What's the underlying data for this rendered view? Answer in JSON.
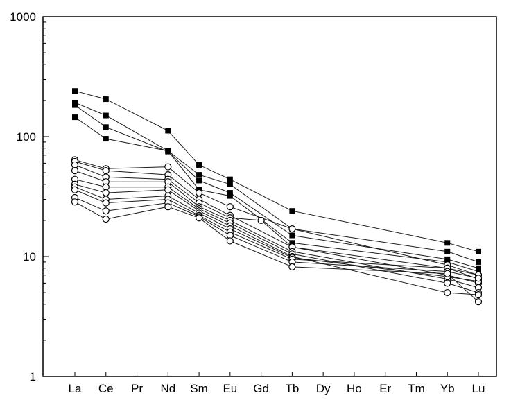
{
  "chart_data": {
    "type": "line",
    "title": "",
    "xlabel": "",
    "ylabel": "",
    "yscale": "log",
    "ylim": [
      1,
      1000
    ],
    "categories": [
      "La",
      "Ce",
      "Pr",
      "Nd",
      "Sm",
      "Eu",
      "Gd",
      "Tb",
      "Dy",
      "Ho",
      "Er",
      "Tm",
      "Yb",
      "Lu"
    ],
    "y_ticks": [
      "1",
      "10",
      "100",
      "1000"
    ],
    "grid": false,
    "legend": "none",
    "series": [
      {
        "marker": "square",
        "points": [
          [
            "La",
            240
          ],
          [
            "Ce",
            205
          ],
          [
            "Nd",
            112
          ],
          [
            "Sm",
            58
          ],
          [
            "Eu",
            44
          ],
          [
            "Tb",
            24
          ],
          [
            "Yb",
            13
          ],
          [
            "Lu",
            11
          ]
        ]
      },
      {
        "marker": "square",
        "points": [
          [
            "La",
            192
          ],
          [
            "Ce",
            150
          ],
          [
            "Nd",
            76
          ],
          [
            "Sm",
            48
          ],
          [
            "Eu",
            40
          ],
          [
            "Tb",
            17
          ],
          [
            "Yb",
            11
          ],
          [
            "Lu",
            9
          ]
        ]
      },
      {
        "marker": "square",
        "points": [
          [
            "La",
            183
          ],
          [
            "Ce",
            120
          ],
          [
            "Nd",
            75
          ],
          [
            "Sm",
            43
          ],
          [
            "Eu",
            34
          ],
          [
            "Tb",
            15
          ],
          [
            "Yb",
            9.5
          ],
          [
            "Lu",
            8
          ]
        ]
      },
      {
        "marker": "square",
        "points": [
          [
            "La",
            145
          ],
          [
            "Ce",
            96
          ],
          [
            "Nd",
            76
          ],
          [
            "Sm",
            36
          ],
          [
            "Eu",
            32
          ],
          [
            "Tb",
            13
          ],
          [
            "Yb",
            9
          ],
          [
            "Lu",
            7.5
          ]
        ]
      },
      {
        "marker": "circle",
        "points": [
          [
            "La",
            64
          ],
          [
            "Ce",
            54
          ],
          [
            "Nd",
            56
          ],
          [
            "Sm",
            34
          ],
          [
            "Eu",
            26
          ],
          [
            "Tb",
            17
          ],
          [
            "Yb",
            8.5
          ],
          [
            "Lu",
            7
          ]
        ]
      },
      {
        "marker": "circle",
        "points": [
          [
            "La",
            62
          ],
          [
            "Ce",
            52
          ],
          [
            "Nd",
            48
          ],
          [
            "Sm",
            30
          ],
          [
            "Eu",
            22
          ],
          [
            "Tb",
            12
          ],
          [
            "Yb",
            8
          ],
          [
            "Lu",
            6.5
          ]
        ]
      },
      {
        "marker": "circle",
        "points": [
          [
            "La",
            58
          ],
          [
            "Ce",
            46
          ],
          [
            "Nd",
            44
          ],
          [
            "Sm",
            28
          ],
          [
            "Eu",
            21
          ],
          [
            "Gd",
            20
          ],
          [
            "Tb",
            12
          ],
          [
            "Yb",
            7
          ],
          [
            "Lu",
            6
          ]
        ]
      },
      {
        "marker": "circle",
        "points": [
          [
            "La",
            52
          ],
          [
            "Ce",
            42
          ],
          [
            "Nd",
            42
          ],
          [
            "Sm",
            26
          ],
          [
            "Eu",
            20
          ],
          [
            "Tb",
            11
          ],
          [
            "Yb",
            6.5
          ],
          [
            "Lu",
            5.5
          ]
        ]
      },
      {
        "marker": "circle",
        "points": [
          [
            "La",
            44
          ],
          [
            "Ce",
            38
          ],
          [
            "Nd",
            38
          ],
          [
            "Sm",
            25
          ],
          [
            "Eu",
            19
          ],
          [
            "Tb",
            10.5
          ],
          [
            "Yb",
            6
          ],
          [
            "Lu",
            5
          ]
        ]
      },
      {
        "marker": "circle",
        "points": [
          [
            "La",
            40
          ],
          [
            "Ce",
            34
          ],
          [
            "Nd",
            36
          ],
          [
            "Sm",
            24
          ],
          [
            "Eu",
            18
          ],
          [
            "Tb",
            10
          ],
          [
            "Yb",
            5
          ],
          [
            "Lu",
            4.8
          ]
        ]
      },
      {
        "marker": "circle",
        "points": [
          [
            "La",
            38
          ],
          [
            "Ce",
            30
          ],
          [
            "Nd",
            32
          ],
          [
            "Sm",
            23
          ],
          [
            "Eu",
            17
          ],
          [
            "Tb",
            9.8
          ],
          [
            "Yb",
            6.8
          ],
          [
            "Lu",
            6.2
          ]
        ]
      },
      {
        "marker": "circle",
        "points": [
          [
            "La",
            36
          ],
          [
            "Ce",
            28
          ],
          [
            "Nd",
            30
          ],
          [
            "Sm",
            22
          ],
          [
            "Eu",
            16
          ],
          [
            "Tb",
            9.5
          ],
          [
            "Yb",
            8
          ],
          [
            "Lu",
            7
          ]
        ]
      },
      {
        "marker": "circle",
        "points": [
          [
            "La",
            31
          ],
          [
            "Ce",
            24
          ],
          [
            "Nd",
            28
          ],
          [
            "Sm",
            21.5
          ],
          [
            "Eu",
            15
          ],
          [
            "Tb",
            9
          ],
          [
            "Yb",
            7.5
          ],
          [
            "Lu",
            6.6
          ]
        ]
      },
      {
        "marker": "circle",
        "points": [
          [
            "La",
            28.5
          ],
          [
            "Ce",
            20.5
          ],
          [
            "Nd",
            26
          ],
          [
            "Sm",
            21
          ],
          [
            "Eu",
            13.5
          ],
          [
            "Tb",
            8.2
          ],
          [
            "Yb",
            7.2
          ],
          [
            "Lu",
            4.2
          ]
        ]
      }
    ]
  }
}
